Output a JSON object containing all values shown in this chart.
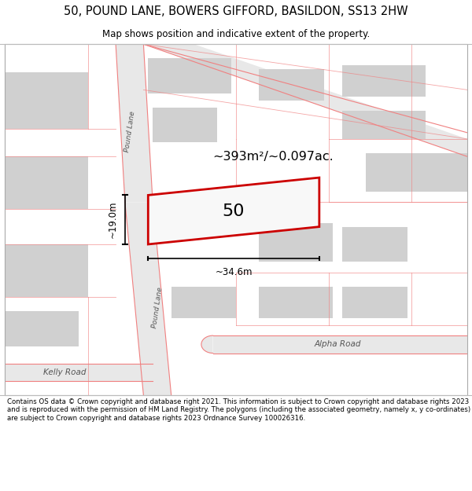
{
  "title": "50, POUND LANE, BOWERS GIFFORD, BASILDON, SS13 2HW",
  "subtitle": "Map shows position and indicative extent of the property.",
  "footer": "Contains OS data © Crown copyright and database right 2021. This information is subject to Crown copyright and database rights 2023 and is reproduced with the permission of HM Land Registry. The polygons (including the associated geometry, namely x, y co-ordinates) are subject to Crown copyright and database rights 2023 Ordnance Survey 100026316.",
  "map_bg": "#ffffff",
  "road_line_color": "#f08080",
  "highlight_border": "#cc0000",
  "text_color": "#000000",
  "area_text": "~393m²/~0.097ac.",
  "plot_number": "50",
  "dim_width": "~34.6m",
  "dim_height": "~19.0m",
  "road1_label": "Pound Lane",
  "road2_label": "Pound Lane",
  "road3_label": "Alpha Road",
  "road4_label": "Kelly Road",
  "building_fill": "#d0d0d0",
  "road_fill": "#e8e8e8"
}
